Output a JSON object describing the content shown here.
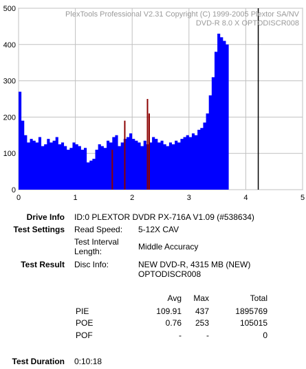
{
  "chart_data": {
    "type": "bar",
    "watermark": [
      "PlexTools Professional V2.31 Copyright (C) 1999-2005 Plextor SA/NV",
      "DVD-R    8.0 X    OPTODISCR008"
    ],
    "x_ticks": [
      "0",
      "1",
      "2",
      "3",
      "4",
      "5"
    ],
    "y_ticks": [
      "0",
      "100",
      "200",
      "300",
      "400",
      "500"
    ],
    "xlim": [
      0,
      5
    ],
    "ylim": [
      0,
      500
    ],
    "grid": true,
    "end_marker_x": 4.22,
    "series": [
      {
        "color": "#0000ff",
        "x_step": 0.05,
        "values": [
          270,
          190,
          150,
          130,
          140,
          135,
          130,
          145,
          120,
          125,
          140,
          130,
          135,
          145,
          125,
          130,
          120,
          110,
          115,
          130,
          125,
          120,
          110,
          115,
          75,
          80,
          85,
          110,
          125,
          120,
          115,
          135,
          130,
          145,
          150,
          120,
          130,
          140,
          145,
          155,
          140,
          135,
          130,
          120,
          135,
          125,
          130,
          145,
          140,
          130,
          135,
          125,
          120,
          130,
          125,
          135,
          130,
          140,
          145,
          150,
          145,
          155,
          150,
          165,
          170,
          185,
          210,
          260,
          310,
          380,
          430,
          420,
          410,
          400
        ]
      },
      {
        "color": "#8b0000",
        "spikes": [
          {
            "x": 1.87,
            "y": 190
          },
          {
            "x": 2.27,
            "y": 250
          },
          {
            "x": 2.3,
            "y": 210
          },
          {
            "x": 1.65,
            "y": 110
          }
        ]
      }
    ]
  },
  "info": {
    "drive_label": "Drive Info",
    "drive_value": "ID:0 PLEXTOR DVDR PX-716A V1.09 (#538634)",
    "settings_label": "Test Settings",
    "read_speed_key": "Read Speed:",
    "read_speed_value": "5-12X CAV",
    "interval_key_1": "Test Interval",
    "interval_key_2": "Length:",
    "interval_value": "Middle Accuracy",
    "result_label": "Test Result",
    "disc_key": "Disc Info:",
    "disc_value_1": "NEW DVD-R, 4315 MB (NEW)",
    "disc_value_2": "OPTODISCR008",
    "duration_label": "Test Duration",
    "duration_value": "0:10:18"
  },
  "table": {
    "headers": [
      "Avg",
      "Max",
      "Total"
    ],
    "rows": [
      {
        "name": "PIE",
        "avg": "109.91",
        "max": "437",
        "total": "1895769"
      },
      {
        "name": "POE",
        "avg": "0.76",
        "max": "253",
        "total": "105015"
      },
      {
        "name": "POF",
        "avg": "-",
        "max": "-",
        "total": "0"
      }
    ]
  }
}
